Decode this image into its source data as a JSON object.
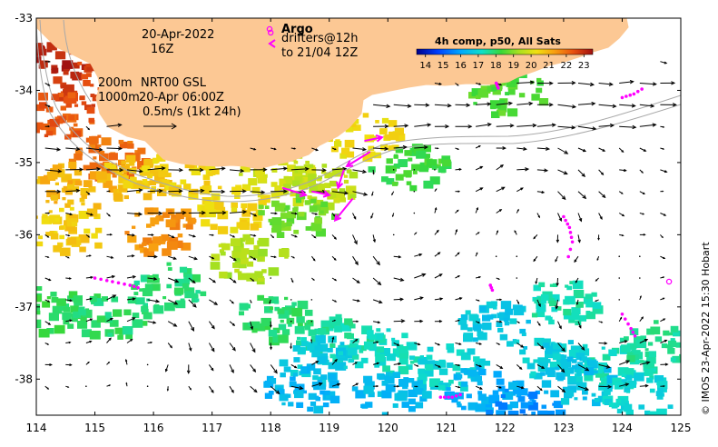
{
  "map": {
    "lon_range": [
      114,
      125
    ],
    "lat_range": [
      -38.5,
      -33
    ],
    "lon_ticks": [
      114,
      115,
      116,
      117,
      118,
      119,
      120,
      121,
      122,
      123,
      124,
      125
    ],
    "lat_ticks": [
      -33,
      -34,
      -35,
      -36,
      -37,
      -38
    ],
    "lon_tick_labels": [
      "114",
      "115",
      "116",
      "117",
      "118",
      "119",
      "120",
      "121",
      "122",
      "123",
      "124",
      "125"
    ],
    "lat_tick_labels": [
      "-33",
      "-34",
      "-35",
      "-36",
      "-37",
      "-38"
    ]
  },
  "annotations": {
    "date": "20-Apr-2022",
    "time": "16Z",
    "contours_line1": "200m",
    "contours_line2": "1000m",
    "altimetry_line1": "NRT00 GSL",
    "altimetry_line2": "20-Apr 06:00Z",
    "scale_label": "0.5m/s (1kt 24h)",
    "argo_label": "Argo",
    "drifters_line1": "drifters@12h",
    "drifters_line2": "to 21/04 12Z"
  },
  "colorbar": {
    "title": "4h comp, p50, All Sats",
    "ticks": [
      "14",
      "15",
      "16",
      "17",
      "18",
      "19",
      "20",
      "21",
      "22",
      "23"
    ],
    "range": [
      13.5,
      23.5
    ]
  },
  "credit": "© IMOS 23-Apr-2022 15:30 Hobart",
  "colors": {
    "land": "#fcc894",
    "argo": "#ff00ff",
    "drifter": "#ff00ff",
    "contour": "#a8a8a8",
    "arrow": "#000000"
  },
  "sst_patches": [
    {
      "lon": 114.55,
      "lat": -33.45,
      "temp": 23.2
    },
    {
      "lon": 114.9,
      "lat": -33.9,
      "temp": 22.6
    },
    {
      "lon": 114.3,
      "lat": -34.3,
      "temp": 22.3
    },
    {
      "lon": 115.2,
      "lat": -34.9,
      "temp": 21.9
    },
    {
      "lon": 114.6,
      "lat": -35.3,
      "temp": 21.0
    },
    {
      "lon": 115.6,
      "lat": -35.2,
      "temp": 20.7
    },
    {
      "lon": 116.4,
      "lat": -35.1,
      "temp": 20.5
    },
    {
      "lon": 114.5,
      "lat": -35.9,
      "temp": 20.6
    },
    {
      "lon": 116.1,
      "lat": -35.9,
      "temp": 21.5
    },
    {
      "lon": 117.3,
      "lat": -35.6,
      "temp": 20.4
    },
    {
      "lon": 118.1,
      "lat": -35.1,
      "temp": 19.8
    },
    {
      "lon": 118.8,
      "lat": -35.25,
      "temp": 19.6
    },
    {
      "lon": 117.6,
      "lat": -36.3,
      "temp": 19.4
    },
    {
      "lon": 118.4,
      "lat": -35.7,
      "temp": 18.8
    },
    {
      "lon": 119.5,
      "lat": -34.6,
      "temp": 20.3
    },
    {
      "lon": 120.3,
      "lat": -35.0,
      "temp": 18.3
    },
    {
      "lon": 116.2,
      "lat": -36.7,
      "temp": 17.8
    },
    {
      "lon": 114.1,
      "lat": -37.0,
      "temp": 18.1
    },
    {
      "lon": 115.2,
      "lat": -37.1,
      "temp": 17.9
    },
    {
      "lon": 118.0,
      "lat": -37.1,
      "temp": 17.9
    },
    {
      "lon": 119.0,
      "lat": -37.4,
      "temp": 17.5
    },
    {
      "lon": 118.8,
      "lat": -37.7,
      "temp": 16.8
    },
    {
      "lon": 119.9,
      "lat": -37.6,
      "temp": 17.2
    },
    {
      "lon": 121.0,
      "lat": -37.8,
      "temp": 17.0
    },
    {
      "lon": 122.8,
      "lat": -37.7,
      "temp": 16.8
    },
    {
      "lon": 123.9,
      "lat": -37.8,
      "temp": 17.3
    },
    {
      "lon": 124.6,
      "lat": -37.5,
      "temp": 17.6
    },
    {
      "lon": 118.5,
      "lat": -38.1,
      "temp": 16.3
    },
    {
      "lon": 120.0,
      "lat": -38.2,
      "temp": 16.4
    },
    {
      "lon": 121.6,
      "lat": -38.1,
      "temp": 16.2
    },
    {
      "lon": 122.3,
      "lat": -38.4,
      "temp": 15.7
    },
    {
      "lon": 123.2,
      "lat": -38.0,
      "temp": 16.6
    },
    {
      "lon": 124.2,
      "lat": -38.2,
      "temp": 17.0
    },
    {
      "lon": 122.9,
      "lat": -36.9,
      "temp": 17.4
    },
    {
      "lon": 121.8,
      "lat": -37.2,
      "temp": 16.7
    },
    {
      "lon": 122.0,
      "lat": -34.0,
      "temp": 18.5
    }
  ],
  "argo_floats": [
    {
      "lon": 118.0,
      "lat": -33.2
    },
    {
      "lon": 124.8,
      "lat": -36.65
    }
  ],
  "drifter_tracks": [
    [
      [
        115.0,
        -36.6
      ],
      [
        115.3,
        -36.65
      ],
      [
        115.6,
        -36.7
      ],
      [
        115.8,
        -36.75
      ]
    ],
    [
      [
        120.9,
        -38.25
      ],
      [
        121.1,
        -38.25
      ],
      [
        121.3,
        -38.2
      ]
    ],
    [
      [
        123.0,
        -35.75
      ],
      [
        123.1,
        -35.9
      ],
      [
        123.15,
        -36.1
      ],
      [
        123.05,
        -36.4
      ]
    ],
    [
      [
        121.75,
        -36.7
      ],
      [
        121.8,
        -36.8
      ]
    ],
    [
      [
        124.0,
        -34.1
      ],
      [
        124.2,
        -34.05
      ],
      [
        124.4,
        -33.95
      ]
    ],
    [
      [
        124.0,
        -37.1
      ],
      [
        124.15,
        -37.3
      ],
      [
        124.25,
        -37.45
      ]
    ],
    [
      [
        121.85,
        -33.9
      ],
      [
        121.9,
        -34.0
      ]
    ]
  ],
  "drifter_arrows": [
    {
      "from": [
        119.4,
        -35.5
      ],
      "to": [
        119.1,
        -35.8
      ]
    },
    {
      "from": [
        118.2,
        -35.35
      ],
      "to": [
        118.6,
        -35.45
      ]
    },
    {
      "from": [
        118.7,
        -35.4
      ],
      "to": [
        119.0,
        -35.45
      ]
    },
    {
      "from": [
        119.7,
        -34.85
      ],
      "to": [
        119.3,
        -35.05
      ]
    },
    {
      "from": [
        119.6,
        -34.7
      ],
      "to": [
        119.9,
        -34.65
      ]
    },
    {
      "from": [
        119.25,
        -35.1
      ],
      "to": [
        119.15,
        -35.35
      ]
    }
  ]
}
